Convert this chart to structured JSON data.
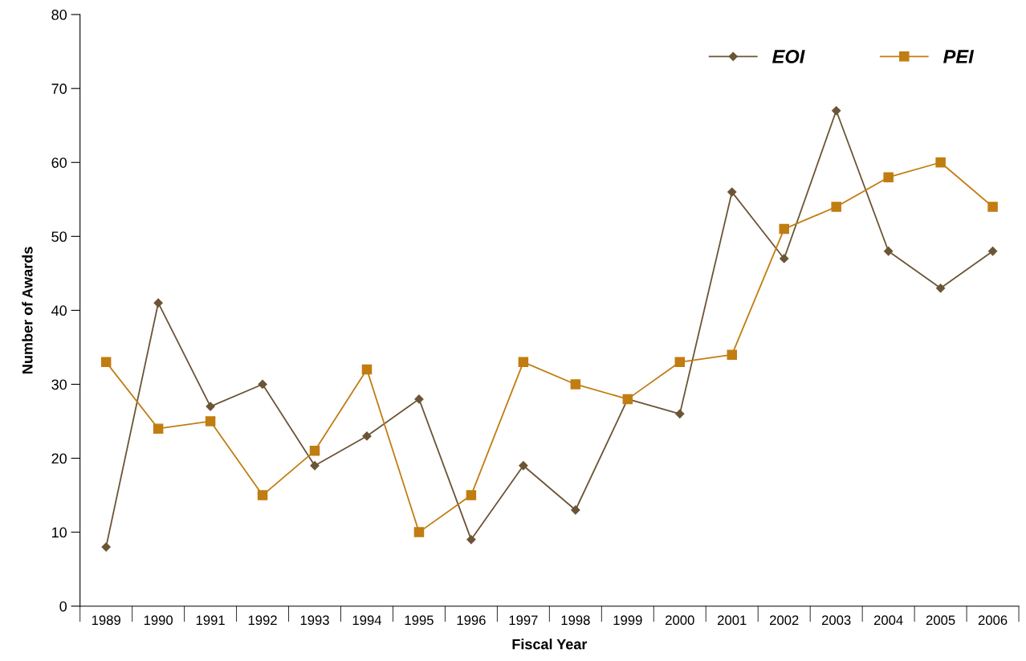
{
  "chart_data": {
    "type": "line",
    "xlabel": "Fiscal Year",
    "ylabel": "Number of Awards",
    "categories": [
      "1989",
      "1990",
      "1991",
      "1992",
      "1993",
      "1994",
      "1995",
      "1996",
      "1997",
      "1998",
      "1999",
      "2000",
      "2001",
      "2002",
      "2003",
      "2004",
      "2005",
      "2006"
    ],
    "series": [
      {
        "name": "EOI",
        "color": "#6b5536",
        "marker": "diamond",
        "values": [
          8,
          41,
          27,
          30,
          19,
          23,
          28,
          9,
          19,
          13,
          28,
          26,
          56,
          47,
          67,
          48,
          43,
          48
        ]
      },
      {
        "name": "PEI",
        "color": "#c17d11",
        "marker": "square",
        "values": [
          33,
          24,
          25,
          15,
          21,
          32,
          10,
          15,
          33,
          30,
          28,
          33,
          34,
          51,
          54,
          58,
          60,
          54
        ]
      }
    ],
    "ylim": [
      0,
      80
    ],
    "yticks": [
      0,
      10,
      20,
      30,
      40,
      50,
      60,
      70,
      80
    ],
    "grid": false,
    "legend": "top right",
    "line_style": "solid"
  }
}
